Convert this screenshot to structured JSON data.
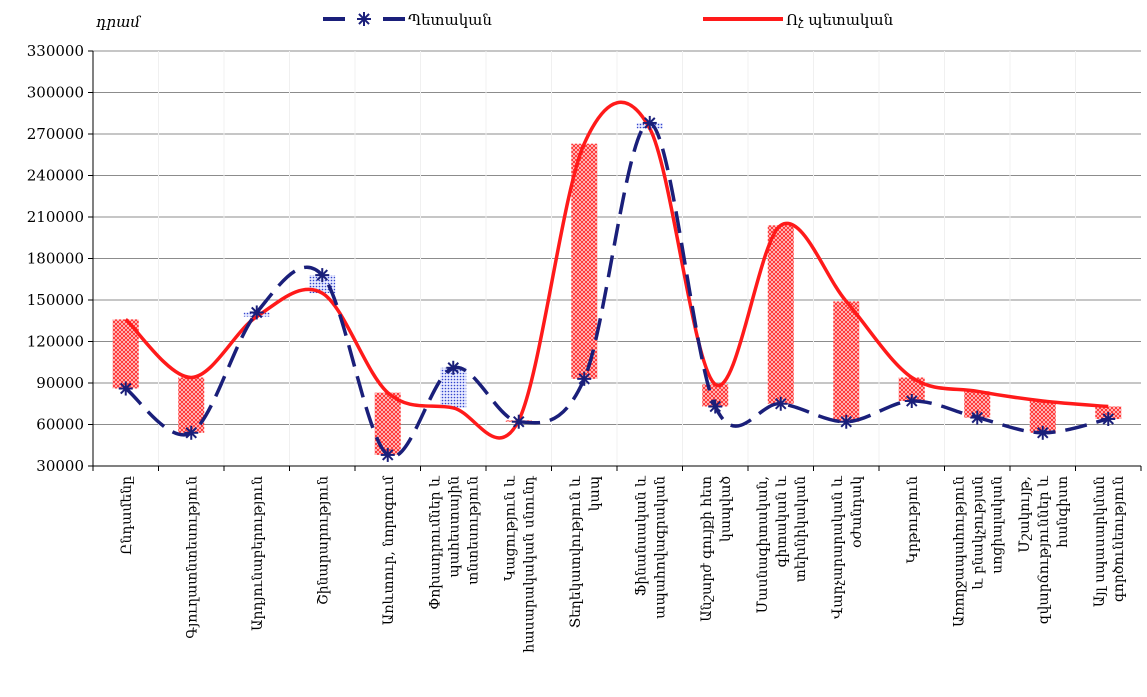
{
  "chart_data": {
    "type": "line",
    "unit_label": "դրամ",
    "ylim": [
      30000,
      330000
    ],
    "y_ticks": [
      30000,
      60000,
      90000,
      120000,
      150000,
      180000,
      210000,
      240000,
      270000,
      300000,
      330000
    ],
    "y_tick_labels": [
      "30000",
      "60000",
      "90000",
      "120000",
      "150000",
      "180000",
      "210000",
      "240000",
      "270000",
      "300000",
      "330000"
    ],
    "grid": "horizontal",
    "legend_position": "top",
    "categories": [
      [
        "Ընդամենը"
      ],
      [
        "Գյուղատնտեսություն"
      ],
      [
        "Արդյունաբերություն"
      ],
      [
        "Շինարարություն"
      ],
      [
        "Առևտուր, նորոգում"
      ],
      [
        "Փոխադրումներ և",
        "պահեստային",
        "տնտեսություն"
      ],
      [
        "Կացություն և",
        "հասարակական սնունդ"
      ],
      [
        "Տեղեկատվություն և",
        "կապ"
      ],
      [
        "Ֆինանսական և",
        "ապահովագրական"
      ],
      [
        "Անշարժ գույքի հետ",
        "կապված"
      ],
      [
        "Մասնագիտական,",
        "գիտական և",
        "տեխնիկական"
      ],
      [
        "Վարչարարական և",
        "օժանդակ"
      ],
      [
        "Կրթություն"
      ],
      [
        "Առողջապահություն",
        "և բնակչության",
        "սոցիալական"
      ],
      [
        "Մշակույթ,",
        "զվարճություններ և",
        "հանգիստ"
      ],
      [
        "Այլ սպասարկման",
        "գործունեություն"
      ]
    ],
    "series": [
      {
        "name": "Պետական",
        "values": [
          86000,
          54000,
          141000,
          168000,
          38000,
          101000,
          62000,
          93000,
          278000,
          73000,
          75000,
          62000,
          77000,
          65000,
          54000,
          64000
        ]
      },
      {
        "name": "Ոչ պետական",
        "values": [
          136000,
          94000,
          138000,
          155000,
          83000,
          72000,
          63000,
          263000,
          274000,
          89000,
          204000,
          149000,
          94000,
          84000,
          77000,
          73000
        ]
      }
    ],
    "colors": {
      "state": "#1a1f7a",
      "non_state": "#ff1a1a",
      "bar_up": "#3344cc",
      "bar_down": "#ff3333"
    }
  }
}
